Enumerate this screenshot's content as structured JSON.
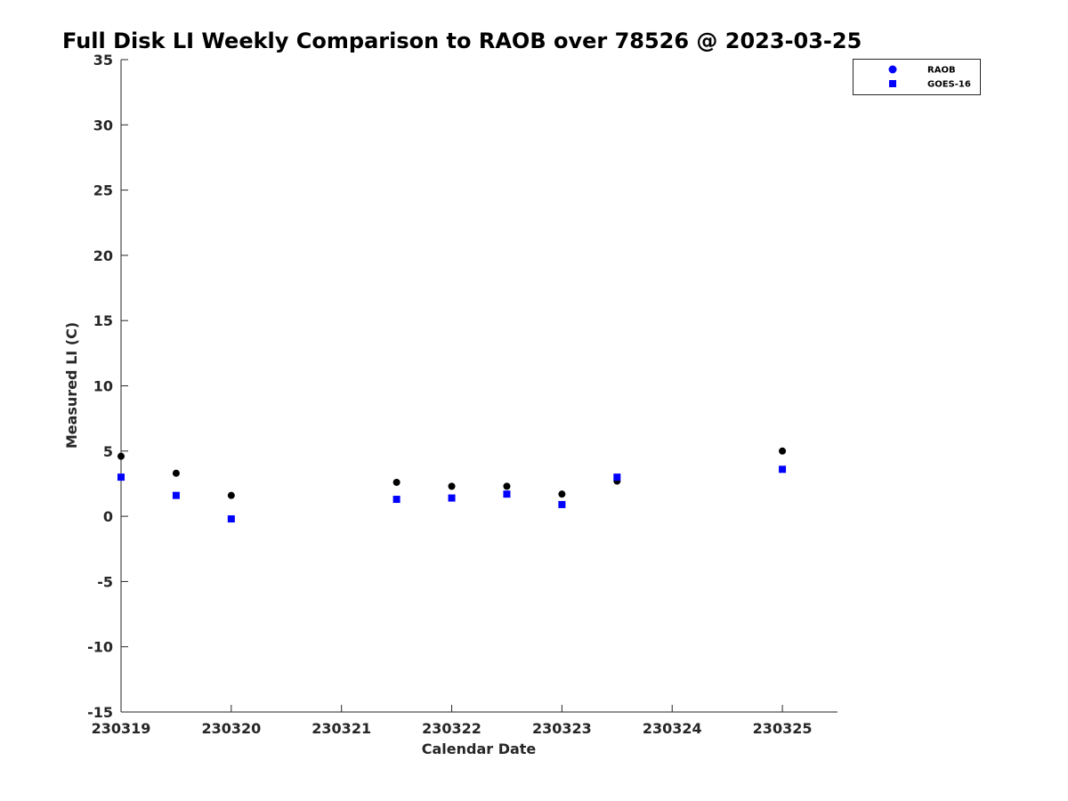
{
  "chart_data": {
    "type": "scatter",
    "title": "Full Disk LI Weekly Comparison to RAOB over 78526 @ 2023-03-25",
    "xlabel": "Calendar Date",
    "ylabel": "Measured LI (C)",
    "xlim": [
      0,
      6.5
    ],
    "ylim": [
      -15,
      35
    ],
    "x_ticks": [
      0,
      1,
      2,
      3,
      4,
      5,
      6
    ],
    "x_tick_labels": [
      "230319",
      "230320",
      "230321",
      "230322",
      "230323",
      "230324",
      "230325"
    ],
    "y_ticks": [
      -15,
      -10,
      -5,
      0,
      5,
      10,
      15,
      20,
      25,
      30,
      35
    ],
    "y_tick_labels": [
      "-15",
      "-10",
      "-5",
      "0",
      "5",
      "10",
      "15",
      "20",
      "25",
      "30",
      "35"
    ],
    "grid": false,
    "legend": "top-right",
    "series": [
      {
        "name": "RAOB",
        "marker": "circle",
        "color": "#000000",
        "legend_color": "#0000ff",
        "x": [
          0,
          0.5,
          1,
          2.5,
          3,
          3.5,
          4,
          4.5,
          6
        ],
        "y": [
          4.6,
          3.3,
          1.6,
          2.6,
          2.3,
          2.3,
          1.7,
          2.7,
          5.0
        ]
      },
      {
        "name": "GOES-16",
        "marker": "square",
        "color": "#0000ff",
        "legend_color": "#0000ff",
        "x": [
          0,
          0.5,
          1,
          2.5,
          3,
          3.5,
          4,
          4.5,
          6
        ],
        "y": [
          3.0,
          1.6,
          -0.2,
          1.3,
          1.4,
          1.7,
          0.9,
          3.0,
          3.6
        ]
      }
    ]
  }
}
